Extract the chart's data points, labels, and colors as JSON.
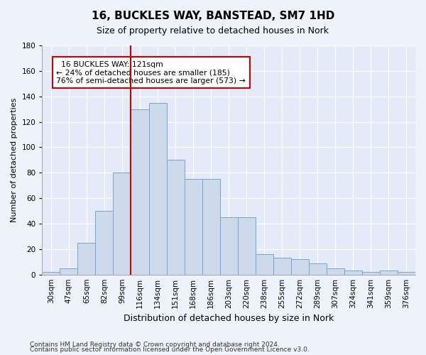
{
  "title": "16, BUCKLES WAY, BANSTEAD, SM7 1HD",
  "subtitle": "Size of property relative to detached houses in Nork",
  "xlabel": "Distribution of detached houses by size in Nork",
  "ylabel": "Number of detached properties",
  "footnote1": "Contains HM Land Registry data © Crown copyright and database right 2024.",
  "footnote2": "Contains public sector information licensed under the Open Government Licence v3.0.",
  "annotation_line1": "  16 BUCKLES WAY: 121sqm  ",
  "annotation_line2": "← 24% of detached houses are smaller (185)",
  "annotation_line3": "76% of semi-detached houses are larger (573) →",
  "bar_color": "#ccdaeb",
  "bar_edge_color": "#7aa4cc",
  "vline_color": "#cc0000",
  "vline_x": 4,
  "categories": [
    "30sqm",
    "47sqm",
    "65sqm",
    "82sqm",
    "99sqm",
    "116sqm",
    "134sqm",
    "151sqm",
    "168sqm",
    "186sqm",
    "203sqm",
    "220sqm",
    "238sqm",
    "255sqm",
    "272sqm",
    "289sqm",
    "307sqm",
    "324sqm",
    "341sqm",
    "359sqm",
    "376sqm"
  ],
  "values": [
    2,
    5,
    25,
    50,
    80,
    130,
    135,
    90,
    75,
    75,
    45,
    45,
    16,
    13,
    12,
    9,
    5,
    3,
    2,
    3,
    2
  ],
  "ylim": [
    0,
    180
  ],
  "yticks": [
    0,
    20,
    40,
    60,
    80,
    100,
    120,
    140,
    160,
    180
  ],
  "background_color": "#eef2fb",
  "plot_background": "#e4eaf7",
  "title_fontsize": 11,
  "subtitle_fontsize": 9,
  "ylabel_fontsize": 8,
  "xlabel_fontsize": 9,
  "tick_fontsize": 7.5,
  "footnote_fontsize": 6.5
}
